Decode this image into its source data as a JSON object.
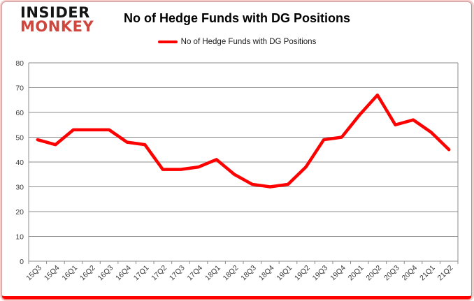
{
  "logo": {
    "line1": "INSIDER",
    "line2": "MONKEY"
  },
  "header": {
    "title": "No of Hedge Funds with DG Positions"
  },
  "legend": {
    "label": "No of Hedge Funds with DG Positions",
    "swatch_color": "#FE0000"
  },
  "axes": {
    "y_ticks": [
      "0",
      "10",
      "20",
      "30",
      "40",
      "50",
      "60",
      "70",
      "80"
    ]
  },
  "chart_data": {
    "type": "line",
    "title": "No of Hedge Funds with DG Positions",
    "categories": [
      "15Q3",
      "15Q4",
      "16Q1",
      "16Q2",
      "16Q3",
      "16Q4",
      "17Q1",
      "17Q2",
      "17Q3",
      "17Q4",
      "18Q1",
      "18Q2",
      "18Q3",
      "18Q4",
      "19Q1",
      "19Q2",
      "19Q3",
      "19Q4",
      "20Q1",
      "20Q2",
      "20Q3",
      "20Q4",
      "21Q1",
      "21Q2"
    ],
    "series": [
      {
        "name": "No of Hedge Funds with DG Positions",
        "color": "#FE0000",
        "values": [
          49,
          47,
          53,
          53,
          53,
          48,
          47,
          37,
          37,
          38,
          41,
          35,
          31,
          30,
          31,
          38,
          49,
          50,
          59,
          67,
          55,
          57,
          52,
          45
        ]
      }
    ],
    "xlabel": "",
    "ylabel": "",
    "ylim": [
      0,
      80
    ],
    "ytick_step": 10,
    "grid": true,
    "legend_position": "top-center"
  },
  "colors": {
    "line": "#FE0000",
    "grid": "#8C8C8C",
    "axis_text": "#3A3A3A",
    "card_border_bottom": "#FE0202",
    "card_border_side": "#F2A0A0",
    "logo_red": "#CE463D"
  }
}
